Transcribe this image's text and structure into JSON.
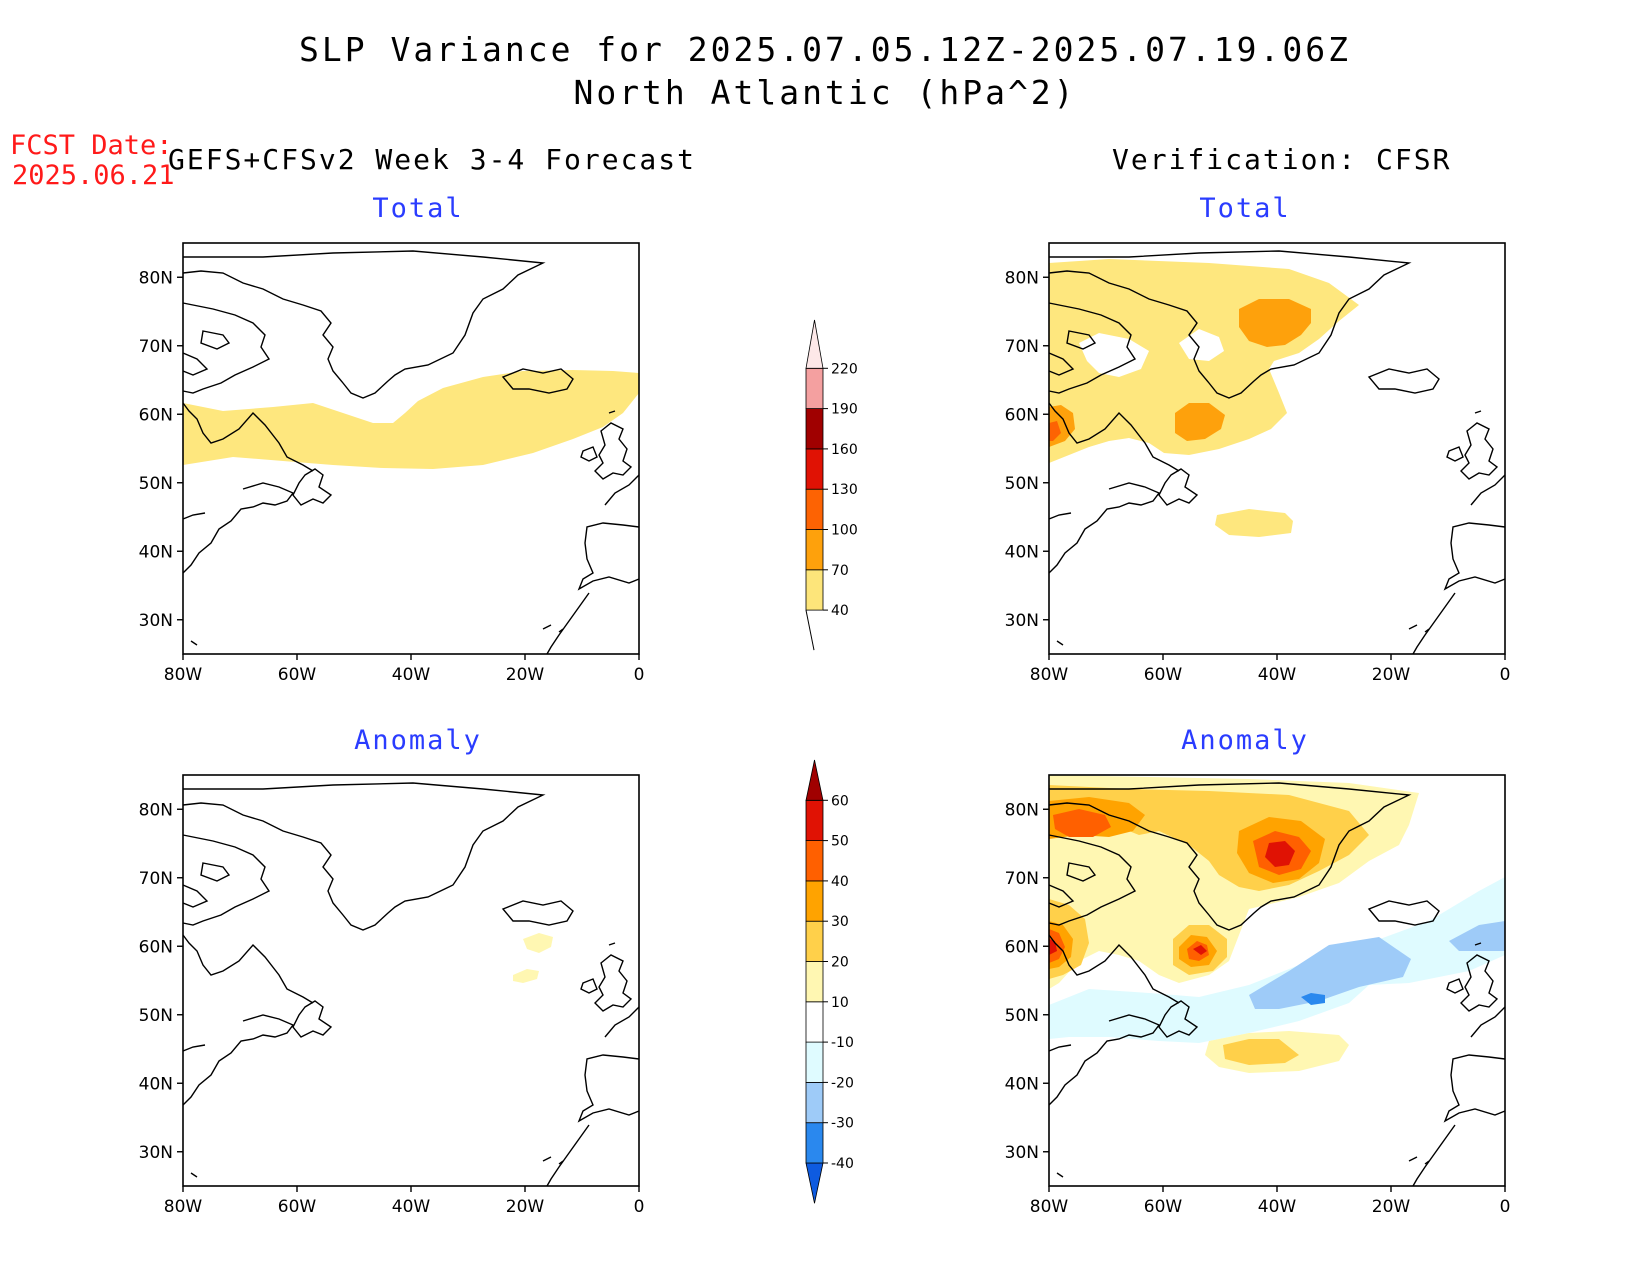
{
  "title": {
    "line1": "SLP Variance for 2025.07.05.12Z-2025.07.19.06Z",
    "line2": "North Atlantic (hPa^2)"
  },
  "fcst_date": {
    "label": "FCST Date:",
    "value": "2025.06.21"
  },
  "columns": {
    "left": "GEFS+CFSv2 Week 3-4 Forecast",
    "right": "Verification: CFSR"
  },
  "panels": {
    "fc_total": {
      "title": "Total"
    },
    "fc_anom": {
      "title": "Anomaly"
    },
    "vf_total": {
      "title": "Total"
    },
    "vf_anom": {
      "title": "Anomaly"
    }
  },
  "axes": {
    "lat_ticks": [
      "80N",
      "70N",
      "60N",
      "50N",
      "40N",
      "30N"
    ],
    "lon_ticks": [
      "80W",
      "60W",
      "40W",
      "20W",
      "0"
    ]
  },
  "colorbars": {
    "total": {
      "levels": [
        "40",
        "70",
        "100",
        "130",
        "160",
        "190",
        "220"
      ],
      "colors": [
        "#fde57a",
        "#fea10c",
        "#fd6303",
        "#e01204",
        "#a00000",
        "#f4a0a0",
        "#fde8e8"
      ]
    },
    "anomaly": {
      "levels": [
        "-40",
        "-30",
        "-20",
        "-10",
        "10",
        "20",
        "30",
        "40",
        "50",
        "60"
      ],
      "colors": [
        "#0e5be0",
        "#2a88ee",
        "#9ecbf8",
        "#dffbff",
        "#ffffff",
        "#fff7b2",
        "#ffd04a",
        "#ffa300",
        "#ff6000",
        "#e01204",
        "#a00000"
      ]
    }
  },
  "chart_data": [
    {
      "type": "heatmap",
      "panel": "GEFS+CFSv2 Week 3-4 Forecast - Total",
      "variable": "SLP variance (hPa^2)",
      "region": {
        "lon": [
          -80,
          0
        ],
        "lat": [
          25,
          85
        ]
      },
      "contour_levels": [
        40,
        70,
        100,
        130,
        160,
        190,
        220
      ],
      "features": [
        {
          "level_min": 40,
          "desc": "zonal band ~52N-65N from 80W to 0"
        }
      ]
    },
    {
      "type": "heatmap",
      "panel": "GEFS+CFSv2 Week 3-4 Forecast - Anomaly",
      "variable": "SLP variance anomaly (hPa^2)",
      "region": {
        "lon": [
          -80,
          0
        ],
        "lat": [
          25,
          85
        ]
      },
      "contour_levels": [
        -40,
        -30,
        -20,
        -10,
        10,
        20,
        30,
        40,
        50,
        60
      ],
      "features": [
        {
          "level_min": 10,
          "center": [
            -16,
            59
          ]
        },
        {
          "level_min": 10,
          "center": [
            -18,
            55
          ]
        }
      ]
    },
    {
      "type": "heatmap",
      "panel": "Verification: CFSR - Total",
      "variable": "SLP variance (hPa^2)",
      "region": {
        "lon": [
          -80,
          0
        ],
        "lat": [
          25,
          85
        ]
      },
      "contour_levels": [
        40,
        70,
        100,
        130,
        160,
        190,
        220
      ],
      "features": [
        {
          "level_min": 40,
          "desc": "broad region 55N-84N, 80W-25W"
        },
        {
          "level_min": 70,
          "center": [
            -40,
            74
          ]
        },
        {
          "level_min": 70,
          "center": [
            -52,
            58
          ]
        },
        {
          "level_min": 70,
          "center": [
            -78,
            59
          ]
        },
        {
          "level_min": 40,
          "center": [
            -42,
            44
          ]
        }
      ]
    },
    {
      "type": "heatmap",
      "panel": "Verification: CFSR - Anomaly",
      "variable": "SLP variance anomaly (hPa^2)",
      "region": {
        "lon": [
          -80,
          0
        ],
        "lat": [
          25,
          85
        ]
      },
      "contour_levels": [
        -40,
        -30,
        -20,
        -10,
        10,
        20,
        30,
        40,
        50,
        60
      ],
      "features": [
        {
          "level_min": 10,
          "desc": "positive anomalies over Greenland/Baffin 55N-84N"
        },
        {
          "level_min": 50,
          "center": [
            -40,
            74
          ]
        },
        {
          "level_min": 40,
          "center": [
            -53,
            58
          ]
        },
        {
          "level_min": 50,
          "center": [
            -79,
            59
          ]
        },
        {
          "level_min": 20,
          "center": [
            -40,
            43
          ]
        },
        {
          "level_max": -10,
          "desc": "negative band from 45N,60W to 62N,0"
        },
        {
          "level_max": -30,
          "center": [
            -33,
            53
          ]
        }
      ]
    }
  ]
}
